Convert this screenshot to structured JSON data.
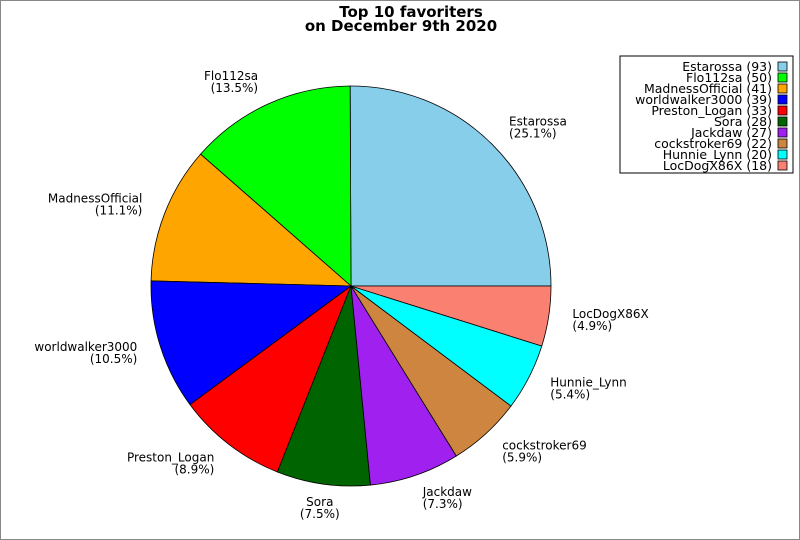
{
  "chart_data": {
    "type": "pie",
    "title": [
      "Top 10 favoriters",
      "on December 9th 2020"
    ],
    "start_angle_deg": 0,
    "direction": "counterclockwise",
    "legend_placement": "top-right",
    "slices": [
      {
        "label": "Estarossa",
        "value": 93,
        "percent": "25.1%",
        "color": "#87ceeb",
        "legend": "Estarossa (93)"
      },
      {
        "label": "Flo112sa",
        "value": 50,
        "percent": "13.5%",
        "color": "#00ff00",
        "legend": "Flo112sa (50)"
      },
      {
        "label": "MadnessOfficial",
        "value": 41,
        "percent": "11.1%",
        "color": "#ffa500",
        "legend": "MadnessOfficial (41)"
      },
      {
        "label": "worldwalker3000",
        "value": 39,
        "percent": "10.5%",
        "color": "#0000ff",
        "legend": "worldwalker3000 (39)"
      },
      {
        "label": "Preston_Logan",
        "value": 33,
        "percent": "8.9%",
        "color": "#ff0000",
        "legend": "Preston_Logan (33)"
      },
      {
        "label": "Sora",
        "value": 28,
        "percent": "7.5%",
        "color": "#006400",
        "legend": "Sora (28)"
      },
      {
        "label": "Jackdaw",
        "value": 27,
        "percent": "7.3%",
        "color": "#a020f0",
        "legend": "Jackdaw (27)"
      },
      {
        "label": "cockstroker69",
        "value": 22,
        "percent": "5.9%",
        "color": "#cd853f",
        "legend": "cockstroker69 (22)"
      },
      {
        "label": "Hunnie_Lynn",
        "value": 20,
        "percent": "5.4%",
        "color": "#00ffff",
        "legend": "Hunnie_Lynn (20)"
      },
      {
        "label": "LocDogX86X",
        "value": 18,
        "percent": "4.9%",
        "color": "#fa8072",
        "legend": "LocDogX86X (18)"
      }
    ]
  }
}
